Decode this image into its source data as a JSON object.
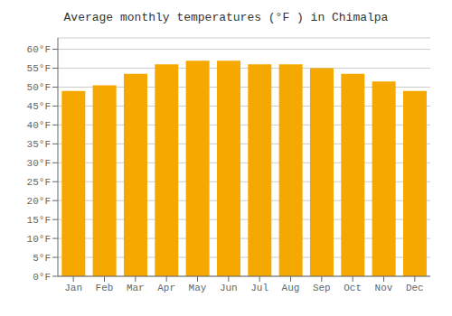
{
  "chart_data": {
    "type": "bar",
    "title": "Average monthly temperatures (°F ) in Chimalpa",
    "categories": [
      "Jan",
      "Feb",
      "Mar",
      "Apr",
      "May",
      "Jun",
      "Jul",
      "Aug",
      "Sep",
      "Oct",
      "Nov",
      "Dec"
    ],
    "values": [
      49.0,
      50.5,
      53.5,
      56.0,
      57.0,
      57.0,
      56.0,
      56.0,
      55.0,
      53.5,
      51.5,
      49.0
    ],
    "color": "#F5A800",
    "ylim": [
      0,
      63
    ],
    "yticks": [
      {
        "value": 0,
        "label": "0°F"
      },
      {
        "value": 5,
        "label": "5°F"
      },
      {
        "value": 10,
        "label": "10°F"
      },
      {
        "value": 15,
        "label": "15°F"
      },
      {
        "value": 20,
        "label": "20°F"
      },
      {
        "value": 25,
        "label": "25°F"
      },
      {
        "value": 30,
        "label": "30°F"
      },
      {
        "value": 35,
        "label": "35°F"
      },
      {
        "value": 40,
        "label": "40°F"
      },
      {
        "value": 45,
        "label": "45°F"
      },
      {
        "value": 50,
        "label": "50°F"
      },
      {
        "value": 55,
        "label": "55°F"
      },
      {
        "value": 60,
        "label": "60°F"
      }
    ],
    "grid": true
  }
}
